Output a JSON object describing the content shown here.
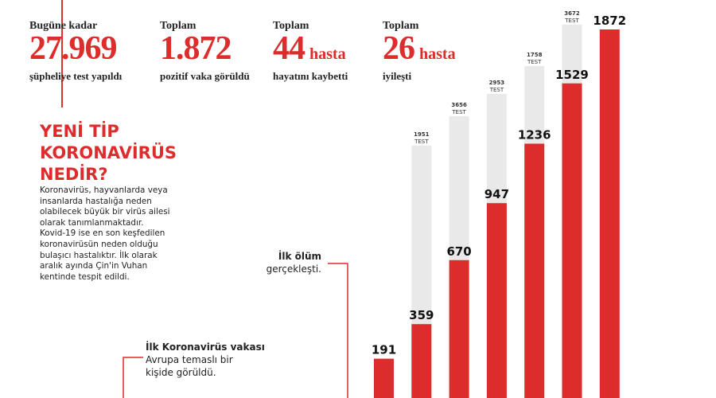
{
  "stats": [
    {
      "label": "Bugüne kadar",
      "value": "27.969",
      "unit": "",
      "sub": "şüpheliye test yapıldı"
    },
    {
      "label": "Toplam",
      "value": "1.872",
      "unit": "",
      "sub": "pozitif vaka görüldü"
    },
    {
      "label": "Toplam",
      "value": "44",
      "unit": "hasta",
      "sub": "hayatını kaybetti"
    },
    {
      "label": "Toplam",
      "value": "26",
      "unit": "hasta",
      "sub": "iyileşti"
    }
  ],
  "title_lines": [
    "YENİ TİP",
    "KORONAVİRÜS",
    "NEDİR?"
  ],
  "description_lines": [
    "Koronavirüs, hayvanlarda veya",
    "insanlarda hastalığa neden",
    "olabilecek büyük bir virüs ailesi",
    "olarak tanımlanmaktadır.",
    "Kovid-19 ise en son keşfedilen",
    "koronavirüsün neden olduğu",
    "bulaşıcı hastalıktır. İlk olarak",
    "aralık ayında Çin'in Vuhan",
    "kentinde tespit edildi."
  ],
  "annotations": {
    "first_death": {
      "bold": "İlk ölüm",
      "text": "gerçekleşti."
    },
    "first_case": {
      "bold": "İlk Koronavirüs vakası",
      "text1": "Avrupa temaslı bir",
      "text2": "kişide görüldü."
    }
  },
  "colors": {
    "accent": "#dd2c2c",
    "test_bar": "#e9e9e9",
    "text": "#222222"
  },
  "chart_data": {
    "type": "bar",
    "series": [
      {
        "values": [
          191,
          359,
          670,
          947,
          1236,
          1529,
          1872
        ]
      },
      {
        "values": [
          null,
          1951,
          3656,
          2953,
          1758,
          3672,
          null
        ]
      }
    ],
    "test_label": "TEST"
  }
}
